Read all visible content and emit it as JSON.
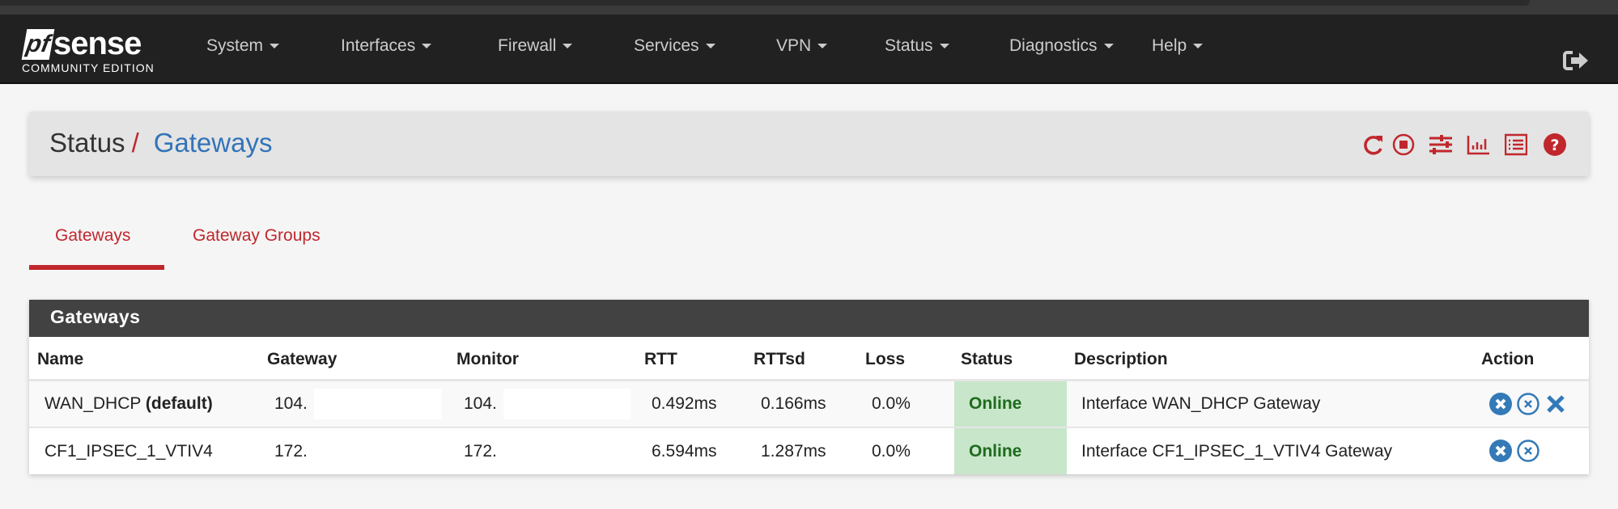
{
  "navbar": {
    "logo": {
      "brand": "pfsense",
      "edition": "COMMUNITY EDITION"
    },
    "items": [
      {
        "label": "System"
      },
      {
        "label": "Interfaces"
      },
      {
        "label": "Firewall"
      },
      {
        "label": "Services"
      },
      {
        "label": "VPN"
      },
      {
        "label": "Status"
      },
      {
        "label": "Diagnostics"
      },
      {
        "label": "Help"
      }
    ],
    "logout_icon": "sign-out-icon"
  },
  "breadcrumb": {
    "parent": "Status",
    "separator": "/",
    "current": "Gateways",
    "icons": [
      "refresh-icon",
      "stop-circle-icon",
      "sliders-icon",
      "bar-chart-icon",
      "list-icon",
      "help-icon"
    ]
  },
  "tabs": [
    {
      "label": "Gateways",
      "active": true
    },
    {
      "label": "Gateway Groups",
      "active": false
    }
  ],
  "panel": {
    "title": "Gateways",
    "columns": [
      "Name",
      "Gateway",
      "Monitor",
      "RTT",
      "RTTsd",
      "Loss",
      "Status",
      "Description",
      "Action"
    ],
    "rows": [
      {
        "name": "WAN_DHCP",
        "name_suffix": "(default)",
        "gateway": "104.",
        "monitor": "104.",
        "rtt": "0.492ms",
        "rttsd": "0.166ms",
        "loss": "0.0%",
        "status": "Online",
        "description": "Interface WAN_DHCP Gateway",
        "actions": [
          "kill-states-icon",
          "disable-icon",
          "delete-icon"
        ]
      },
      {
        "name": "CF1_IPSEC_1_VTIV4",
        "name_suffix": "",
        "gateway": "172.",
        "monitor": "172.",
        "rtt": "6.594ms",
        "rttsd": "1.287ms",
        "loss": "0.0%",
        "status": "Online",
        "description": "Interface CF1_IPSEC_1_VTIV4 Gateway",
        "actions": [
          "kill-states-icon",
          "disable-icon"
        ]
      }
    ]
  },
  "colors": {
    "navbar": "#212121",
    "accent_red": "#c0272d",
    "link_blue": "#3274b8",
    "online_bg": "#c8e6c9",
    "online_text": "#1e6b1e",
    "panel_header": "#424242"
  }
}
